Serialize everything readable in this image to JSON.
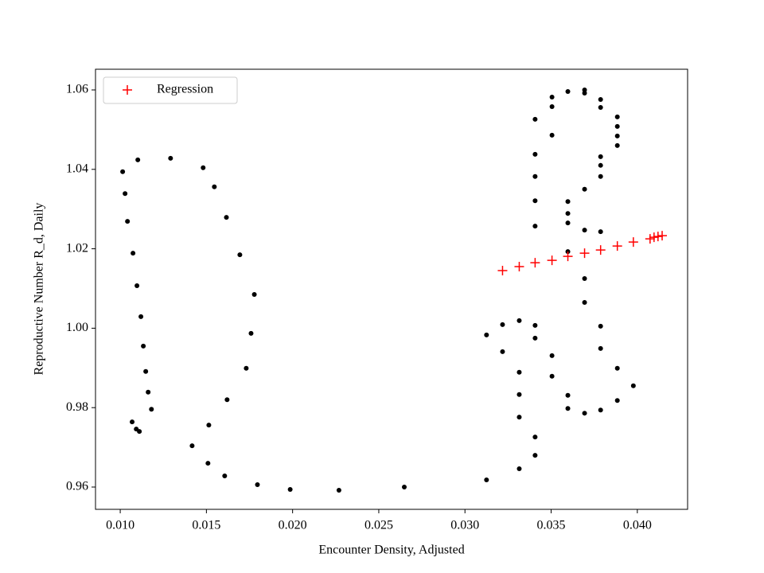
{
  "chart_data": {
    "type": "scatter",
    "xlabel": "Encounter Density, Adjusted",
    "ylabel": "Reproductive Number R_d, Daily",
    "xlim": [
      0.008565,
      0.042917
    ],
    "ylim": [
      0.95439,
      1.06521
    ],
    "xticks": [
      {
        "value": 0.01,
        "label": "0.010"
      },
      0.015,
      {
        "value": 0.02,
        "label": "0.020"
      },
      0.025,
      {
        "value": 0.03,
        "label": "0.030"
      },
      0.035,
      {
        "value": 0.04,
        "label": "0.040"
      }
    ],
    "yticks": [
      0.96,
      0.98,
      {
        "value": 1.0,
        "label": "1.00"
      },
      1.02,
      1.04,
      1.06
    ],
    "grid": false,
    "legend": "upper left",
    "series": [
      {
        "color": "#000000",
        "marker": "o",
        "x": [
          0.01014,
          0.01028,
          0.01042,
          0.01074,
          0.01097,
          0.0112,
          0.01134,
          0.01148,
          0.01162,
          0.01181,
          0.01069,
          0.01093,
          0.01111,
          0.01102,
          0.01292,
          0.01481,
          0.01546,
          0.01616,
          0.01694,
          0.01778,
          0.01759,
          0.01731,
          0.0162,
          0.01514,
          0.01417,
          0.01509,
          0.01606,
          0.01796,
          0.01986,
          0.02269,
          0.02648,
          0.03125,
          0.03315,
          0.03407,
          0.03407,
          0.03315,
          0.03315,
          0.03315,
          0.03218,
          0.03125,
          0.03218,
          0.03315,
          0.03407,
          0.03407,
          0.03505,
          0.03505,
          0.03597,
          0.03597,
          0.03694,
          0.03787,
          0.03884,
          0.03977,
          0.03884,
          0.03787,
          0.03787,
          0.03694,
          0.03694,
          0.03597,
          0.03694,
          0.03787,
          0.03597,
          0.03597,
          0.03597,
          0.03694,
          0.03787,
          0.03787,
          0.03787,
          0.03407,
          0.03407,
          0.03407,
          0.03407,
          0.03407,
          0.03505,
          0.03505,
          0.03505,
          0.03597,
          0.03694,
          0.03694,
          0.03787,
          0.03787,
          0.03884,
          0.03884,
          0.03884,
          0.03884
        ],
        "values": [
          1.0394,
          1.0339,
          1.0269,
          1.0189,
          1.0107,
          1.0029,
          0.9955,
          0.9891,
          0.9839,
          0.9796,
          0.9764,
          0.9746,
          0.974,
          1.0424,
          1.0428,
          1.0404,
          1.0356,
          1.0279,
          1.0185,
          1.0085,
          0.9987,
          0.9899,
          0.982,
          0.9756,
          0.9704,
          0.966,
          0.9628,
          0.9606,
          0.9594,
          0.9592,
          0.96,
          0.9618,
          0.9646,
          0.968,
          0.9726,
          0.9776,
          0.9833,
          0.9889,
          0.9941,
          0.9983,
          1.0009,
          1.0019,
          1.0007,
          0.9975,
          0.9931,
          0.9879,
          0.9831,
          0.9798,
          0.9786,
          0.9794,
          0.9818,
          0.9855,
          0.9899,
          0.9949,
          1.0005,
          1.0065,
          1.0125,
          1.0193,
          1.0247,
          1.0243,
          1.0265,
          1.0289,
          1.0319,
          1.035,
          1.0382,
          1.041,
          1.0432,
          1.0257,
          1.0321,
          1.0382,
          1.0438,
          1.0526,
          1.0486,
          1.0558,
          1.0582,
          1.0596,
          1.06,
          1.0592,
          1.0576,
          1.0556,
          1.0532,
          1.0508,
          1.0484,
          1.046
        ]
      },
      {
        "name": "Regression",
        "color": "#ff0000",
        "marker": "+",
        "x": [
          0.03218,
          0.03315,
          0.03407,
          0.03505,
          0.03597,
          0.03694,
          0.03787,
          0.03884,
          0.03977,
          0.04074,
          0.04097,
          0.0412,
          0.04144
        ],
        "values": [
          1.0145,
          1.0155,
          1.0165,
          1.0171,
          1.0181,
          1.0189,
          1.0197,
          1.0207,
          1.0217,
          1.0225,
          1.0229,
          1.0231,
          1.0233
        ]
      }
    ]
  }
}
